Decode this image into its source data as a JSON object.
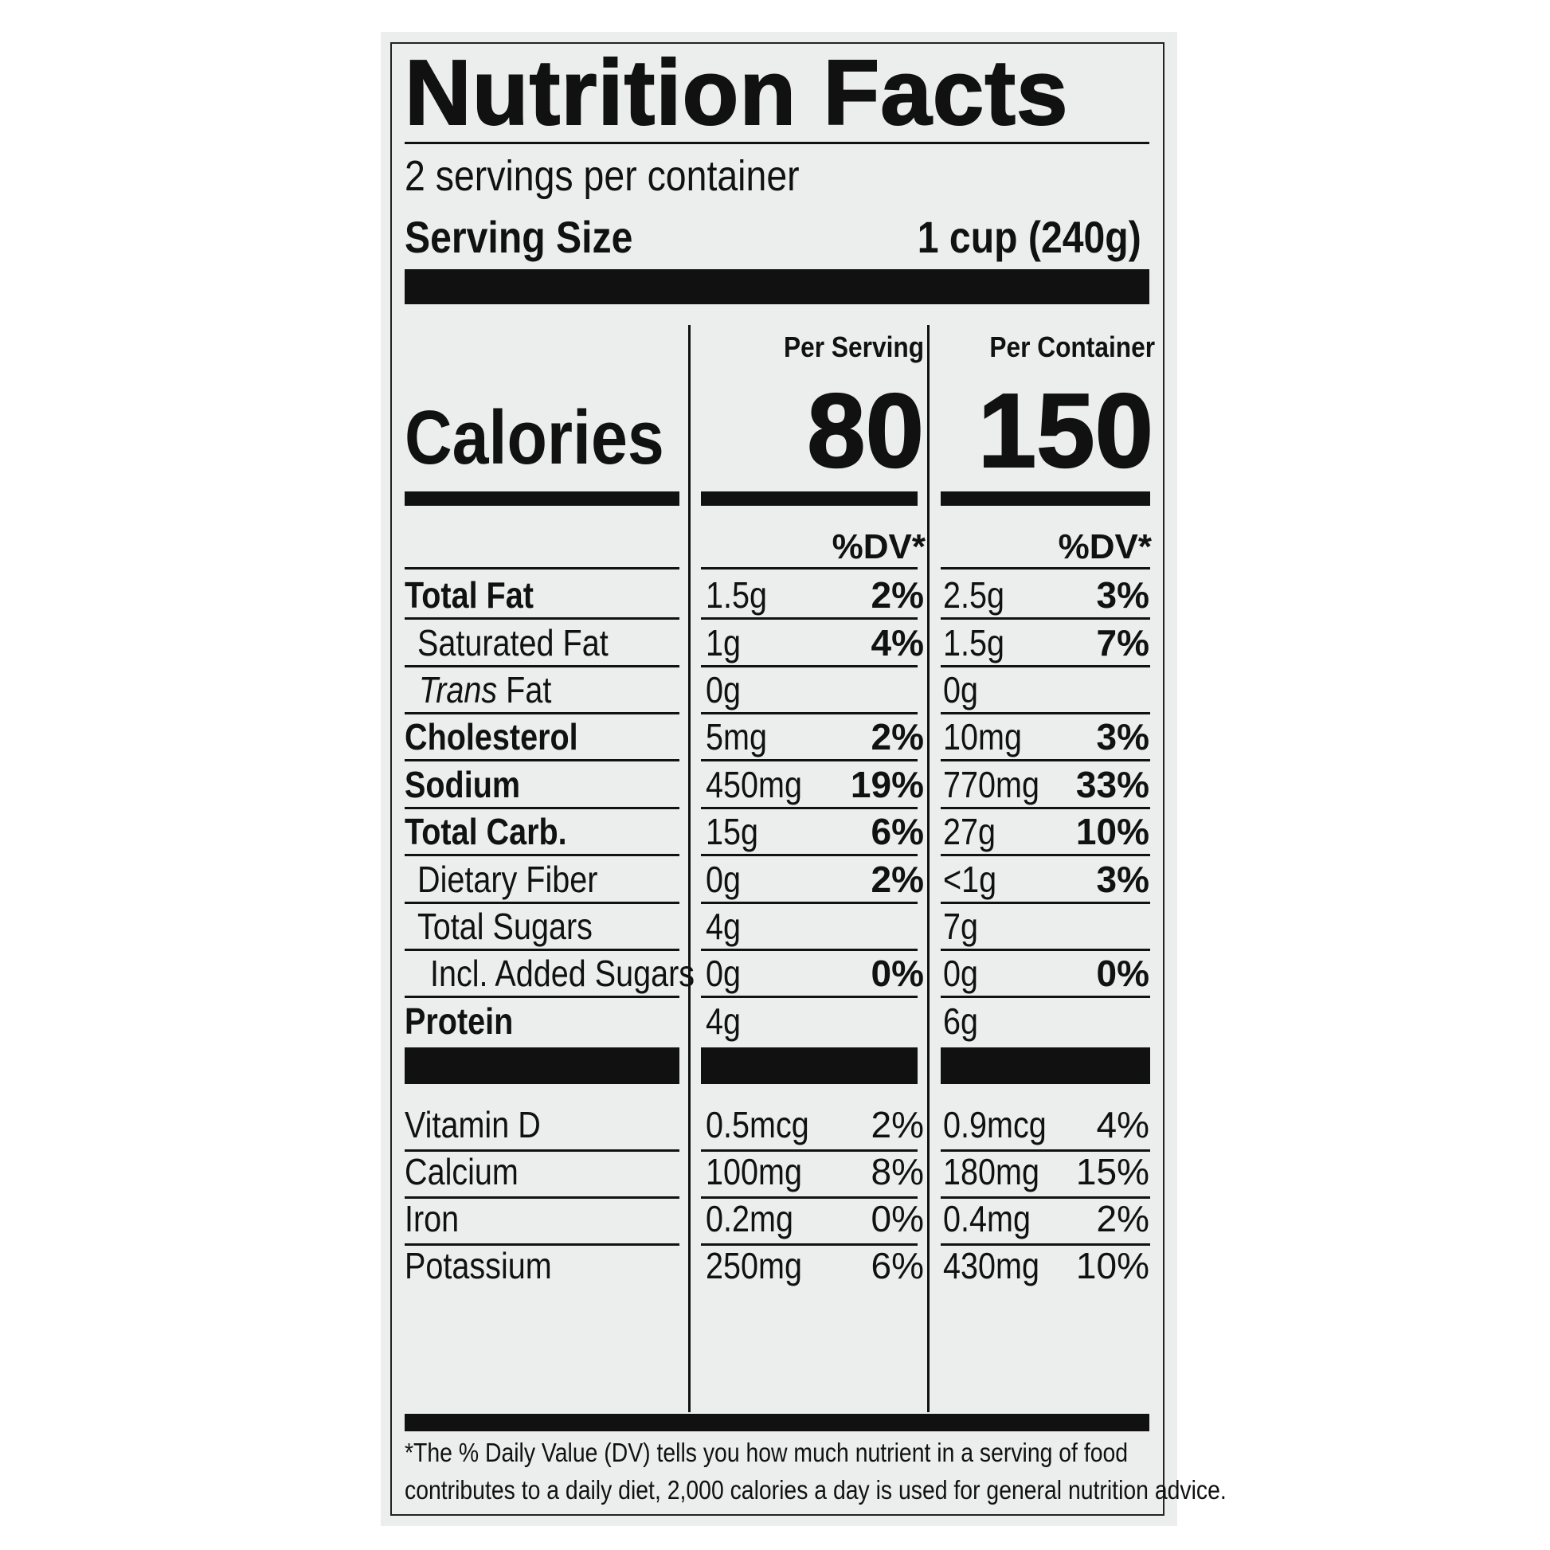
{
  "title": "Nutrition Facts",
  "servings_per_container": "2 servings per container",
  "serving_size_label": "Serving Size",
  "serving_size_value": "1 cup (240g)",
  "col_per_serving": "Per Serving",
  "col_per_container": "Per Container",
  "calories_label": "Calories",
  "calories_serving": "80",
  "calories_container": "150",
  "dv_header": "%DV*",
  "nutrients": [
    {
      "name": "Total Fat",
      "serving_amount": "1.5g",
      "serving_dv": "2%",
      "container_amount": "2.5g",
      "container_dv": "3%"
    },
    {
      "name": "Saturated Fat",
      "serving_amount": "1g",
      "serving_dv": "4%",
      "container_amount": "1.5g",
      "container_dv": "7%"
    },
    {
      "name_italic": "Trans",
      "name_rest": " Fat",
      "serving_amount": "0g",
      "serving_dv": "",
      "container_amount": "0g",
      "container_dv": ""
    },
    {
      "name": "Cholesterol",
      "serving_amount": "5mg",
      "serving_dv": "2%",
      "container_amount": "10mg",
      "container_dv": "3%"
    },
    {
      "name": "Sodium",
      "serving_amount": "450mg",
      "serving_dv": "19%",
      "container_amount": "770mg",
      "container_dv": "33%"
    },
    {
      "name": "Total Carb.",
      "serving_amount": "15g",
      "serving_dv": "6%",
      "container_amount": "27g",
      "container_dv": "10%"
    },
    {
      "name": "Dietary Fiber",
      "serving_amount": "0g",
      "serving_dv": "2%",
      "container_amount": "<1g",
      "container_dv": "3%"
    },
    {
      "name": "Total Sugars",
      "serving_amount": "4g",
      "serving_dv": "",
      "container_amount": "7g",
      "container_dv": ""
    },
    {
      "name": "Incl. Added Sugars",
      "serving_amount": "0g",
      "serving_dv": "0%",
      "container_amount": "0g",
      "container_dv": "0%"
    },
    {
      "name": "Protein",
      "serving_amount": "4g",
      "serving_dv": "",
      "container_amount": "6g",
      "container_dv": ""
    }
  ],
  "vitamins": [
    {
      "name": "Vitamin D",
      "serving_amount": "0.5mcg",
      "serving_dv": "2%",
      "container_amount": "0.9mcg",
      "container_dv": "4%"
    },
    {
      "name": "Calcium",
      "serving_amount": "100mg",
      "serving_dv": "8%",
      "container_amount": "180mg",
      "container_dv": "15%"
    },
    {
      "name": "Iron",
      "serving_amount": "0.2mg",
      "serving_dv": "0%",
      "container_amount": "0.4mg",
      "container_dv": "2%"
    },
    {
      "name": "Potassium",
      "serving_amount": "250mg",
      "serving_dv": "6%",
      "container_amount": "430mg",
      "container_dv": "10%"
    }
  ],
  "footnote_line1": "*The % Daily Value (DV) tells you how much nutrient in a serving of food",
  "footnote_line2": "contributes to a daily diet, 2,000 calories a day is used for general nutrition advice."
}
